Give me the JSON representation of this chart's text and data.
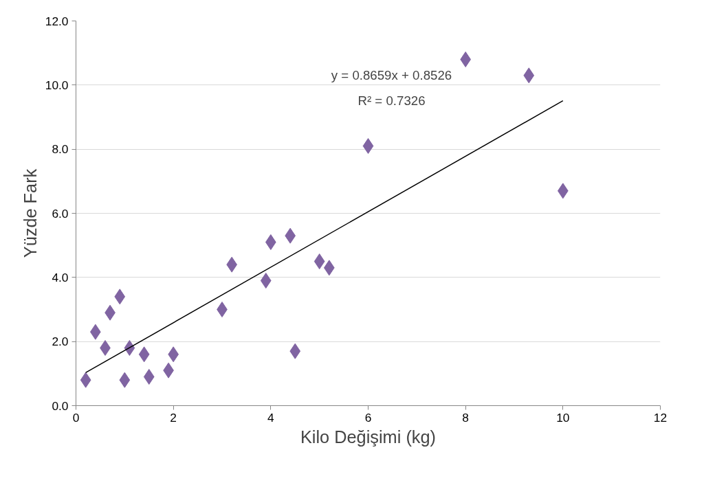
{
  "chart_data": {
    "type": "scatter",
    "xlabel": "Kilo Değişimi (kg)",
    "ylabel": "Yüzde Fark",
    "annotations": [
      "y = 0.8659x + 0.8526",
      "R² = 0.7326"
    ],
    "xlim": [
      0,
      12
    ],
    "xticks": [
      0,
      2,
      4,
      6,
      8,
      10,
      12
    ],
    "ylim": [
      0,
      12
    ],
    "yticks": [
      {
        "value": 0,
        "label": "0.0"
      },
      {
        "value": 2,
        "label": "2.0"
      },
      {
        "value": 4,
        "label": "4.0"
      },
      {
        "value": 6,
        "label": "6.0"
      },
      {
        "value": 8,
        "label": "8.0"
      },
      {
        "value": 10,
        "label": "10.0"
      },
      {
        "value": 12,
        "label": "12.0"
      }
    ],
    "grid": "y",
    "marker": "diamond",
    "series": [
      {
        "color": "#8064a2",
        "x": [
          0.2,
          0.4,
          0.6,
          0.7,
          0.9,
          1.0,
          1.1,
          1.4,
          1.5,
          1.9,
          2.0,
          3.0,
          3.2,
          3.9,
          4.0,
          4.4,
          4.5,
          5.0,
          5.2,
          6.0,
          8.0,
          9.3,
          10.0
        ],
        "values": [
          0.8,
          2.3,
          1.8,
          2.9,
          3.4,
          0.8,
          1.8,
          1.6,
          0.9,
          1.1,
          1.6,
          3.0,
          4.4,
          3.9,
          5.1,
          5.3,
          1.7,
          4.5,
          4.3,
          8.1,
          10.8,
          10.3,
          6.7
        ]
      },
      {
        "type": "line",
        "color": "#000000",
        "marker": "none",
        "x": [
          0.2,
          10.0
        ],
        "values": [
          1.03,
          9.51
        ]
      }
    ]
  }
}
